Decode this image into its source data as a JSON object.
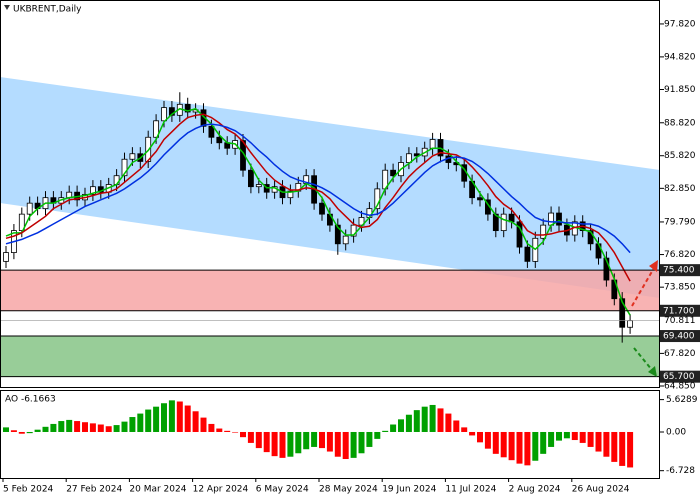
{
  "chart_data": {
    "type": "candlestick",
    "title": "UKBRENT,Daily",
    "categories": [
      "5 Feb 2024",
      null,
      null,
      null,
      null,
      null,
      null,
      null,
      "27 Feb 2024",
      null,
      null,
      null,
      null,
      null,
      null,
      null,
      "20 Mar 2024",
      null,
      null,
      null,
      null,
      null,
      null,
      null,
      "12 Apr 2024",
      null,
      null,
      null,
      null,
      null,
      null,
      null,
      "6 May 2024",
      null,
      null,
      null,
      null,
      null,
      null,
      null,
      "28 May 2024",
      null,
      null,
      null,
      null,
      null,
      null,
      null,
      "19 Jun 2024",
      null,
      null,
      null,
      null,
      null,
      null,
      null,
      "11 Jul 2024",
      null,
      null,
      null,
      null,
      null,
      null,
      null,
      "2 Aug 2024",
      null,
      null,
      null,
      null,
      null,
      null,
      null,
      "26 Aug 2024",
      null,
      null,
      null,
      null,
      null,
      null,
      null
    ],
    "open": [
      76.2,
      77.0,
      79.0,
      80.5,
      81.5,
      81.0,
      82.0,
      81.5,
      82.0,
      82.5,
      81.8,
      82.3,
      83.0,
      82.5,
      83.2,
      84.0,
      85.5,
      86.0,
      85.3,
      87.5,
      89.0,
      90.2,
      89.5,
      90.5,
      89.8,
      90.0,
      88.5,
      87.5,
      87.0,
      86.5,
      87.2,
      84.5,
      83.0,
      83.2,
      82.5,
      83.0,
      82.0,
      82.6,
      83.3,
      84.0,
      81.5,
      80.5,
      79.5,
      77.8,
      78.5,
      79.5,
      80.2,
      81.0,
      82.8,
      84.5,
      84.0,
      85.2,
      86.0,
      85.8,
      86.5,
      87.3,
      85.8,
      85.2,
      85.0,
      83.5,
      82.0,
      81.8,
      80.5,
      79.0,
      80.5,
      79.8,
      77.5,
      76.2,
      78.3,
      79.5,
      80.6,
      79.5,
      78.6,
      79.8,
      79.0,
      77.8,
      76.5,
      74.5,
      72.8,
      70.2
    ],
    "high": [
      77.6,
      79.6,
      81.1,
      82.1,
      82.1,
      82.6,
      82.6,
      82.6,
      83.1,
      83.1,
      82.9,
      83.6,
      83.6,
      83.8,
      84.6,
      86.1,
      86.6,
      86.6,
      88.1,
      89.6,
      90.8,
      90.8,
      91.6,
      91.1,
      90.6,
      90.6,
      89.1,
      88.1,
      87.6,
      87.8,
      87.8,
      85.1,
      83.8,
      83.8,
      83.6,
      83.6,
      83.2,
      83.9,
      84.6,
      84.6,
      82.1,
      81.1,
      80.1,
      79.1,
      80.1,
      80.8,
      81.6,
      83.4,
      85.1,
      85.1,
      85.8,
      86.6,
      86.6,
      87.1,
      87.9,
      87.9,
      86.4,
      85.8,
      85.6,
      84.1,
      82.6,
      82.4,
      81.1,
      81.1,
      81.1,
      80.4,
      78.1,
      78.9,
      80.1,
      81.2,
      81.2,
      80.1,
      80.4,
      80.4,
      79.6,
      78.4,
      77.1,
      75.1,
      73.4,
      71.4
    ],
    "low": [
      75.6,
      76.4,
      78.4,
      79.9,
      80.4,
      80.4,
      80.9,
      80.9,
      81.4,
      81.2,
      81.2,
      81.7,
      81.9,
      81.9,
      82.6,
      83.4,
      84.9,
      84.7,
      84.7,
      86.9,
      88.4,
      88.9,
      88.9,
      89.2,
      89.2,
      87.9,
      86.9,
      86.4,
      85.9,
      85.9,
      83.9,
      82.4,
      82.4,
      81.9,
      81.9,
      81.4,
      81.4,
      82.0,
      82.7,
      80.9,
      79.9,
      78.9,
      76.8,
      77.2,
      77.9,
      78.9,
      79.6,
      80.4,
      82.2,
      83.4,
      83.4,
      84.6,
      85.2,
      85.2,
      85.9,
      85.2,
      84.6,
      84.4,
      82.9,
      81.4,
      81.2,
      79.9,
      78.4,
      78.4,
      79.2,
      76.9,
      75.6,
      75.6,
      77.7,
      78.9,
      78.9,
      78.0,
      78.0,
      78.4,
      77.2,
      75.9,
      73.9,
      72.2,
      68.8,
      69.6
    ],
    "close": [
      77.0,
      79.0,
      80.5,
      81.5,
      81.0,
      82.0,
      81.5,
      82.0,
      82.5,
      81.8,
      82.3,
      83.0,
      82.5,
      83.2,
      84.0,
      85.5,
      86.0,
      85.3,
      87.5,
      89.0,
      90.2,
      89.5,
      90.5,
      89.8,
      90.0,
      88.5,
      87.5,
      87.0,
      86.5,
      87.2,
      84.5,
      83.0,
      83.2,
      82.5,
      83.0,
      82.0,
      82.6,
      83.3,
      84.0,
      81.5,
      80.5,
      79.5,
      77.8,
      78.5,
      79.5,
      80.2,
      81.0,
      82.8,
      84.5,
      84.0,
      85.2,
      86.0,
      85.8,
      86.5,
      87.3,
      85.8,
      85.2,
      85.0,
      83.5,
      82.0,
      81.8,
      80.5,
      79.0,
      80.5,
      79.8,
      77.5,
      76.2,
      78.3,
      79.5,
      80.6,
      79.5,
      78.6,
      79.8,
      79.0,
      77.8,
      76.5,
      74.5,
      72.8,
      70.2,
      70.8
    ],
    "moving_averages": [
      {
        "color": "#00c000",
        "values": [
          78.5,
          78.8,
          78.8,
          80.3,
          81.0,
          81.5,
          81.5,
          81.8,
          82.0,
          82.1,
          82.2,
          82.4,
          82.6,
          82.9,
          83.2,
          84.2,
          85.2,
          85.6,
          86.3,
          87.3,
          88.9,
          89.6,
          90.1,
          89.9,
          90.1,
          89.4,
          88.7,
          87.7,
          87.0,
          86.9,
          86.1,
          84.9,
          83.6,
          82.9,
          82.9,
          82.5,
          82.5,
          82.6,
          83.3,
          82.9,
          82.0,
          80.5,
          79.3,
          78.6,
          78.6,
          79.4,
          80.2,
          81.3,
          82.8,
          83.8,
          84.6,
          85.1,
          85.7,
          86.1,
          86.5,
          86.5,
          86.1,
          85.3,
          84.6,
          83.5,
          82.4,
          81.4,
          80.4,
          80.0,
          79.8,
          79.3,
          77.8,
          77.3,
          78.0,
          79.5,
          79.9,
          79.6,
          79.3,
          79.1,
          78.9,
          77.8,
          76.3,
          74.6,
          72.5,
          71.3
        ]
      },
      {
        "color": "#c00000",
        "values": [
          78.3,
          78.5,
          78.8,
          79.3,
          79.8,
          80.3,
          81.0,
          81.4,
          81.8,
          81.9,
          82.0,
          82.2,
          82.4,
          82.5,
          82.8,
          83.4,
          84.0,
          84.6,
          85.4,
          86.2,
          87.3,
          88.0,
          88.7,
          89.3,
          89.5,
          89.6,
          89.3,
          88.8,
          88.2,
          87.8,
          87.1,
          86.1,
          85.2,
          84.3,
          83.6,
          83.1,
          82.7,
          82.7,
          82.9,
          82.8,
          82.5,
          81.9,
          81.0,
          80.3,
          79.6,
          79.3,
          79.4,
          80.0,
          81.1,
          82.0,
          83.0,
          83.9,
          84.6,
          85.2,
          85.8,
          86.1,
          86.0,
          85.9,
          85.5,
          84.8,
          84.0,
          83.1,
          82.1,
          81.4,
          80.9,
          80.0,
          79.0,
          78.6,
          78.6,
          78.7,
          78.9,
          79.0,
          79.3,
          79.4,
          79.2,
          78.8,
          78.0,
          77.0,
          75.7,
          74.4
        ]
      },
      {
        "color": "#0030e0",
        "values": [
          77.8,
          78.0,
          78.2,
          78.5,
          78.8,
          79.2,
          79.6,
          80.0,
          80.4,
          80.8,
          81.2,
          81.5,
          81.8,
          82.1,
          82.4,
          82.8,
          83.3,
          83.8,
          84.4,
          85.1,
          85.9,
          86.6,
          87.3,
          87.9,
          88.3,
          88.6,
          88.7,
          88.6,
          88.4,
          88.1,
          87.6,
          87.0,
          86.3,
          85.7,
          85.0,
          84.4,
          83.9,
          83.6,
          83.4,
          83.2,
          82.9,
          82.5,
          82.0,
          81.5,
          81.0,
          80.6,
          80.4,
          80.5,
          80.9,
          81.5,
          82.2,
          82.9,
          83.6,
          84.3,
          84.9,
          85.3,
          85.6,
          85.7,
          85.6,
          85.3,
          84.8,
          84.2,
          83.5,
          82.8,
          82.1,
          81.5,
          80.8,
          80.2,
          79.9,
          79.8,
          79.8,
          79.7,
          79.7,
          79.6,
          79.6,
          79.4,
          79.0,
          78.5,
          77.8,
          77.0
        ]
      }
    ],
    "channel": {
      "color": "#b4dcff",
      "upper": [
        92.99,
        84.52
      ],
      "lower": [
        81.51,
        72.86
      ]
    },
    "zones": [
      {
        "color": "#f7a6a6",
        "top": {
          "value": 75.4,
          "label": "75.400"
        },
        "bottom": {
          "value": 71.7,
          "label": "71.700"
        }
      },
      {
        "color": "#86c486",
        "top": {
          "value": 69.4,
          "label": "69.400"
        },
        "bottom": {
          "value": 65.7,
          "label": "65.700"
        }
      }
    ],
    "current_price": {
      "value": 70.811,
      "label": "70.811"
    },
    "ylim": [
      64.76,
      100.0
    ],
    "yticks": [
      {
        "value": 97.82,
        "label": "97.820"
      },
      {
        "value": 94.82,
        "label": "94.820"
      },
      {
        "value": 91.85,
        "label": "91.850"
      },
      {
        "value": 88.82,
        "label": "88.820"
      },
      {
        "value": 85.82,
        "label": "85.820"
      },
      {
        "value": 82.85,
        "label": "82.850"
      },
      {
        "value": 79.79,
        "label": "79.790"
      },
      {
        "value": 76.82,
        "label": "76.820"
      },
      {
        "value": 73.85,
        "label": "73.850"
      },
      {
        "value": 67.82,
        "label": "67.820"
      },
      {
        "value": 64.85,
        "label": "64.850"
      }
    ],
    "indicator": {
      "type": "histogram",
      "title": "AO -6.1663",
      "up_color": "#00a000",
      "down_color": "#ff0000",
      "values": [
        0.8,
        0.3,
        -0.3,
        -0.2,
        0.4,
        0.9,
        1.4,
        1.9,
        2.1,
        1.9,
        1.7,
        1.5,
        1.3,
        1.0,
        1.2,
        1.8,
        2.6,
        3.2,
        3.9,
        4.4,
        5.0,
        5.5,
        5.3,
        4.6,
        3.6,
        2.5,
        1.4,
        0.6,
        0.2,
        -0.1,
        -0.9,
        -1.9,
        -2.8,
        -3.5,
        -4.2,
        -4.5,
        -4.3,
        -3.7,
        -3.0,
        -2.6,
        -2.8,
        -3.4,
        -4.3,
        -4.7,
        -4.5,
        -3.7,
        -2.6,
        -1.2,
        0.2,
        1.3,
        2.2,
        3.0,
        3.8,
        4.4,
        4.7,
        4.1,
        3.2,
        2.0,
        0.8,
        -0.6,
        -1.8,
        -2.9,
        -3.8,
        -4.4,
        -4.9,
        -5.5,
        -5.8,
        -5.0,
        -3.8,
        -2.6,
        -1.5,
        -1.1,
        -1.4,
        -1.9,
        -2.6,
        -3.4,
        -4.3,
        -5.2,
        -5.9,
        -6.1663
      ],
      "ylim": [
        -8.0,
        7.3
      ],
      "yticks": [
        5.6289,
        {
          "value": 0,
          "label": "0.00"
        },
        -6.728
      ]
    }
  }
}
